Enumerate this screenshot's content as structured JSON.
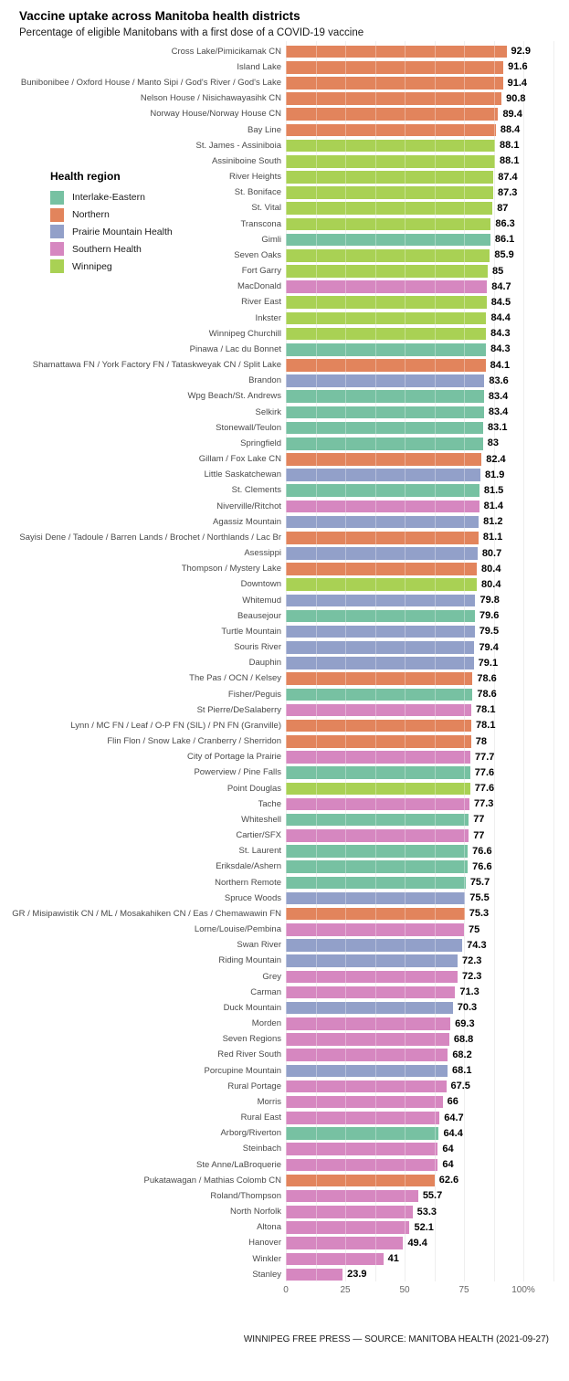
{
  "header": {
    "title": "Vaccine uptake across Manitoba health districts",
    "subtitle": "Percentage of eligible Manitobans with a first dose of a COVID-19 vaccine"
  },
  "legend": {
    "title": "Health region",
    "entries": [
      {
        "label": "Interlake-Eastern",
        "color": "#77c1a2"
      },
      {
        "label": "Northern",
        "color": "#e2845c"
      },
      {
        "label": "Prairie Mountain Health",
        "color": "#92a0c9"
      },
      {
        "label": "Southern Health",
        "color": "#d687c0"
      },
      {
        "label": "Winnipeg",
        "color": "#a9d154"
      }
    ]
  },
  "footer": {
    "credit": "WINNIPEG FREE PRESS — SOURCE: MANITOBA HEALTH (2021-09-27)"
  },
  "chart_data": {
    "type": "bar",
    "orientation": "horizontal",
    "title": "Vaccine uptake across Manitoba health districts",
    "subtitle": "Percentage of eligible Manitobans with a first dose of a COVID-19 vaccine",
    "xlabel": "",
    "ylabel": "",
    "xlim": [
      0,
      100
    ],
    "x_tick_labels": [
      "0",
      "25",
      "50",
      "75",
      "100%"
    ],
    "x_tick_values": [
      0,
      25,
      50,
      75,
      100
    ],
    "grid": "vertical, minor interval 12.5, on",
    "legend_position": "left-upper",
    "region_colors": {
      "Interlake-Eastern": "#77c1a2",
      "Northern": "#e2845c",
      "Prairie Mountain Health": "#92a0c9",
      "Southern Health": "#d687c0",
      "Winnipeg": "#a9d154"
    },
    "bars": [
      {
        "district": "Cross Lake/Pimicikamak CN",
        "value": 92.9,
        "region": "Northern"
      },
      {
        "district": "Island Lake",
        "value": 91.6,
        "region": "Northern"
      },
      {
        "district": "Bunibonibee / Oxford House / Manto Sipi / God's River / God's Lake",
        "value": 91.4,
        "region": "Northern"
      },
      {
        "district": "Nelson House / Nisichawayasihk CN",
        "value": 90.8,
        "region": "Northern"
      },
      {
        "district": "Norway House/Norway House CN",
        "value": 89.4,
        "region": "Northern"
      },
      {
        "district": "Bay Line",
        "value": 88.4,
        "region": "Northern"
      },
      {
        "district": "St. James - Assiniboia",
        "value": 88.1,
        "region": "Winnipeg"
      },
      {
        "district": "Assiniboine South",
        "value": 88.1,
        "region": "Winnipeg"
      },
      {
        "district": "River Heights",
        "value": 87.4,
        "region": "Winnipeg"
      },
      {
        "district": "St. Boniface",
        "value": 87.3,
        "region": "Winnipeg"
      },
      {
        "district": "St. Vital",
        "value": 87,
        "region": "Winnipeg"
      },
      {
        "district": "Transcona",
        "value": 86.3,
        "region": "Winnipeg"
      },
      {
        "district": "Gimli",
        "value": 86.1,
        "region": "Interlake-Eastern"
      },
      {
        "district": "Seven Oaks",
        "value": 85.9,
        "region": "Winnipeg"
      },
      {
        "district": "Fort Garry",
        "value": 85,
        "region": "Winnipeg"
      },
      {
        "district": "MacDonald",
        "value": 84.7,
        "region": "Southern Health"
      },
      {
        "district": "River East",
        "value": 84.5,
        "region": "Winnipeg"
      },
      {
        "district": "Inkster",
        "value": 84.4,
        "region": "Winnipeg"
      },
      {
        "district": "Winnipeg Churchill",
        "value": 84.3,
        "region": "Winnipeg"
      },
      {
        "district": "Pinawa / Lac du Bonnet",
        "value": 84.3,
        "region": "Interlake-Eastern"
      },
      {
        "district": "Shamattawa FN / York Factory FN  / Tataskweyak CN / Split Lake",
        "value": 84.1,
        "region": "Northern"
      },
      {
        "district": "Brandon",
        "value": 83.6,
        "region": "Prairie Mountain Health"
      },
      {
        "district": "Wpg Beach/St. Andrews",
        "value": 83.4,
        "region": "Interlake-Eastern"
      },
      {
        "district": "Selkirk",
        "value": 83.4,
        "region": "Interlake-Eastern"
      },
      {
        "district": "Stonewall/Teulon",
        "value": 83.1,
        "region": "Interlake-Eastern"
      },
      {
        "district": "Springfield",
        "value": 83,
        "region": "Interlake-Eastern"
      },
      {
        "district": "Gillam / Fox Lake CN",
        "value": 82.4,
        "region": "Northern"
      },
      {
        "district": "Little Saskatchewan",
        "value": 81.9,
        "region": "Prairie Mountain Health"
      },
      {
        "district": "St. Clements",
        "value": 81.5,
        "region": "Interlake-Eastern"
      },
      {
        "district": "Niverville/Ritchot",
        "value": 81.4,
        "region": "Southern Health"
      },
      {
        "district": "Agassiz Mountain",
        "value": 81.2,
        "region": "Prairie Mountain Health"
      },
      {
        "district": "Sayisi Dene / Tadoule / Barren Lands / Brochet / Northlands / Lac Br",
        "value": 81.1,
        "region": "Northern"
      },
      {
        "district": "Asessippi",
        "value": 80.7,
        "region": "Prairie Mountain Health"
      },
      {
        "district": "Thompson / Mystery Lake",
        "value": 80.4,
        "region": "Northern"
      },
      {
        "district": "Downtown",
        "value": 80.4,
        "region": "Winnipeg"
      },
      {
        "district": "Whitemud",
        "value": 79.8,
        "region": "Prairie Mountain Health"
      },
      {
        "district": "Beausejour",
        "value": 79.6,
        "region": "Interlake-Eastern"
      },
      {
        "district": "Turtle Mountain",
        "value": 79.5,
        "region": "Prairie Mountain Health"
      },
      {
        "district": "Souris River",
        "value": 79.4,
        "region": "Prairie Mountain Health"
      },
      {
        "district": "Dauphin",
        "value": 79.1,
        "region": "Prairie Mountain Health"
      },
      {
        "district": "The Pas / OCN / Kelsey",
        "value": 78.6,
        "region": "Northern"
      },
      {
        "district": "Fisher/Peguis",
        "value": 78.6,
        "region": "Interlake-Eastern"
      },
      {
        "district": "St Pierre/DeSalaberry",
        "value": 78.1,
        "region": "Southern Health"
      },
      {
        "district": "Lynn / MC FN / Leaf / O-P FN (SIL) / PN FN (Granville)",
        "value": 78.1,
        "region": "Northern"
      },
      {
        "district": "Flin Flon / Snow Lake / Cranberry / Sherridon",
        "value": 78,
        "region": "Northern"
      },
      {
        "district": "City of Portage la Prairie",
        "value": 77.7,
        "region": "Southern Health"
      },
      {
        "district": "Powerview / Pine Falls",
        "value": 77.6,
        "region": "Interlake-Eastern"
      },
      {
        "district": "Point Douglas",
        "value": 77.6,
        "region": "Winnipeg"
      },
      {
        "district": "Tache",
        "value": 77.3,
        "region": "Southern Health"
      },
      {
        "district": "Whiteshell",
        "value": 77,
        "region": "Interlake-Eastern"
      },
      {
        "district": "Cartier/SFX",
        "value": 77,
        "region": "Southern Health"
      },
      {
        "district": "St. Laurent",
        "value": 76.6,
        "region": "Interlake-Eastern"
      },
      {
        "district": "Eriksdale/Ashern",
        "value": 76.6,
        "region": "Interlake-Eastern"
      },
      {
        "district": "Northern Remote",
        "value": 75.7,
        "region": "Interlake-Eastern"
      },
      {
        "district": "Spruce Woods",
        "value": 75.5,
        "region": "Prairie Mountain Health"
      },
      {
        "district": "GR / Misipawistik CN / ML / Mosakahiken CN / Eas / Chemawawin FN",
        "value": 75.3,
        "region": "Northern"
      },
      {
        "district": "Lorne/Louise/Pembina",
        "value": 75,
        "region": "Southern Health"
      },
      {
        "district": "Swan River",
        "value": 74.3,
        "region": "Prairie Mountain Health"
      },
      {
        "district": "Riding Mountain",
        "value": 72.3,
        "region": "Prairie Mountain Health"
      },
      {
        "district": "Grey",
        "value": 72.3,
        "region": "Southern Health"
      },
      {
        "district": "Carman",
        "value": 71.3,
        "region": "Southern Health"
      },
      {
        "district": "Duck Mountain",
        "value": 70.3,
        "region": "Prairie Mountain Health"
      },
      {
        "district": "Morden",
        "value": 69.3,
        "region": "Southern Health"
      },
      {
        "district": "Seven Regions",
        "value": 68.8,
        "region": "Southern Health"
      },
      {
        "district": "Red River South",
        "value": 68.2,
        "region": "Southern Health"
      },
      {
        "district": "Porcupine Mountain",
        "value": 68.1,
        "region": "Prairie Mountain Health"
      },
      {
        "district": "Rural Portage",
        "value": 67.5,
        "region": "Southern Health"
      },
      {
        "district": "Morris",
        "value": 66,
        "region": "Southern Health"
      },
      {
        "district": "Rural East",
        "value": 64.7,
        "region": "Southern Health"
      },
      {
        "district": "Arborg/Riverton",
        "value": 64.4,
        "region": "Interlake-Eastern"
      },
      {
        "district": "Steinbach",
        "value": 64,
        "region": "Southern Health"
      },
      {
        "district": "Ste Anne/LaBroquerie",
        "value": 64,
        "region": "Southern Health"
      },
      {
        "district": "Pukatawagan / Mathias Colomb CN",
        "value": 62.6,
        "region": "Northern"
      },
      {
        "district": "Roland/Thompson",
        "value": 55.7,
        "region": "Southern Health"
      },
      {
        "district": "North Norfolk",
        "value": 53.3,
        "region": "Southern Health"
      },
      {
        "district": "Altona",
        "value": 52.1,
        "region": "Southern Health"
      },
      {
        "district": "Hanover",
        "value": 49.4,
        "region": "Southern Health"
      },
      {
        "district": "Winkler",
        "value": 41,
        "region": "Southern Health"
      },
      {
        "district": "Stanley",
        "value": 23.9,
        "region": "Southern Health"
      }
    ]
  }
}
